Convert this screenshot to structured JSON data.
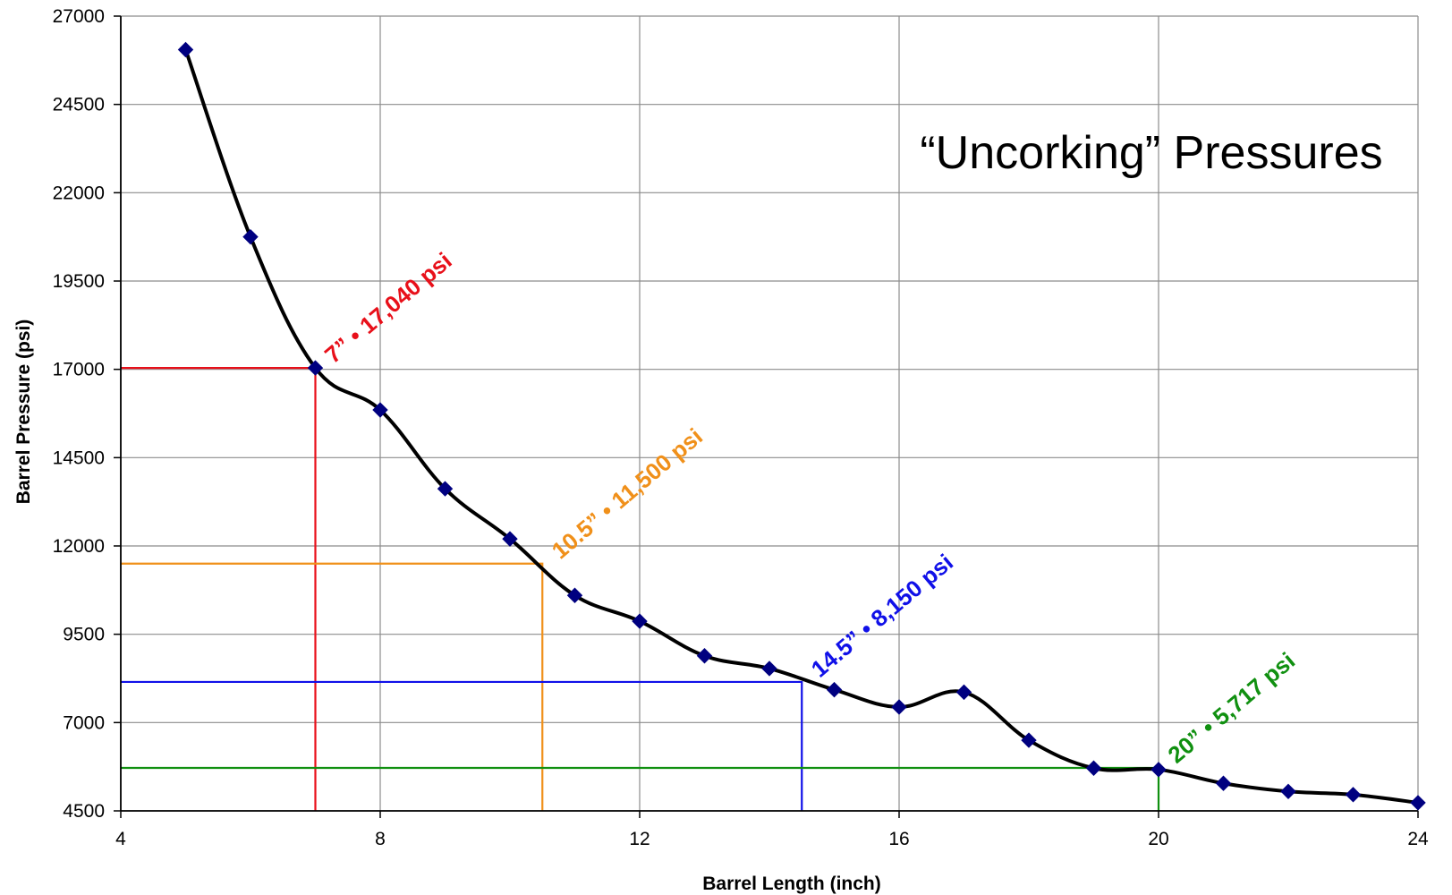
{
  "chart_data": {
    "type": "line",
    "title": "“Uncorking” Pressures",
    "xlabel": "Barrel Length (inch)",
    "ylabel": "Barrel Pressure (psi)",
    "xlim": [
      4,
      24
    ],
    "ylim": [
      4500,
      27000
    ],
    "x_ticks": [
      "4",
      "8",
      "12",
      "16",
      "20",
      "24"
    ],
    "x_tick_values": [
      4,
      8,
      12,
      16,
      20,
      24
    ],
    "y_ticks": [
      "4500",
      "7000",
      "9500",
      "12000",
      "14500",
      "17000",
      "19500",
      "22000",
      "24500",
      "27000"
    ],
    "y_tick_values": [
      4500,
      7000,
      9500,
      12000,
      14500,
      17000,
      19500,
      22000,
      24500,
      27000
    ],
    "grid": true,
    "legend": "none",
    "line_color": "#000000",
    "marker_color": "#000080",
    "marker": "diamond",
    "series": [
      {
        "x": [
          5,
          6,
          7,
          8,
          9,
          10,
          11,
          12,
          13,
          14,
          15,
          16,
          17,
          18,
          19,
          20,
          21,
          22,
          23,
          24
        ],
        "values": [
          26050,
          20750,
          17040,
          15850,
          13620,
          12200,
          10600,
          9870,
          8890,
          8530,
          7930,
          7440,
          7860,
          6500,
          5710,
          5670,
          5280,
          5050,
          4960,
          4730
        ]
      }
    ],
    "annotations": [
      {
        "text": "7” • 17,040 psi",
        "x": 7,
        "y": 17040,
        "color": "#e8101a"
      },
      {
        "text": "10.5” • 11,500 psi",
        "x": 10.5,
        "y": 11500,
        "color": "#f0901a"
      },
      {
        "text": "14.5” • 8,150 psi",
        "x": 14.5,
        "y": 8150,
        "color": "#1010e8"
      },
      {
        "text": "20” • 5,717 psi",
        "x": 20,
        "y": 5717,
        "color": "#109010"
      }
    ]
  }
}
